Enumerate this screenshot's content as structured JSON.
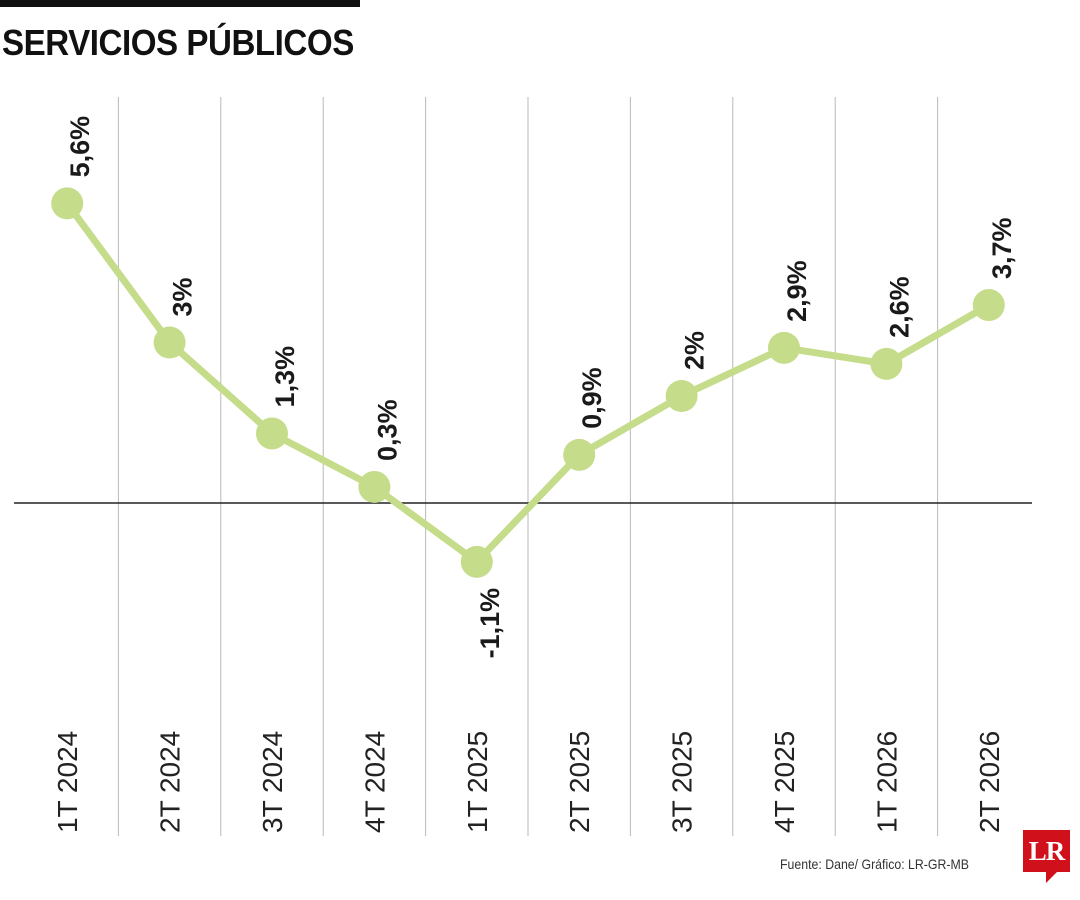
{
  "header": {
    "title": "SERVICIOS PÚBLICOS"
  },
  "colors": {
    "line": "#c5dc8b",
    "point": "#c5dc8b",
    "grid": "#b9b9b9",
    "zero_axis": "#222222",
    "logo": "#d0101a"
  },
  "chart_data": {
    "type": "line",
    "categories": [
      "1T 2024",
      "2T 2024",
      "3T 2024",
      "4T 2024",
      "1T 2025",
      "2T 2025",
      "3T 2025",
      "4T 2025",
      "1T 2026",
      "2T 2026"
    ],
    "series": [
      {
        "values": [
          5.6,
          3,
          1.3,
          0.3,
          -1.1,
          0.9,
          2,
          2.9,
          2.6,
          3.7
        ]
      }
    ],
    "data_labels": [
      "5,6%",
      "3%",
      "1,3%",
      "0,3%",
      "-1,1%",
      "0,9%",
      "2%",
      "2,9%",
      "2,6%",
      "3,7%"
    ],
    "title": "SERVICIOS PÚBLICOS",
    "xlabel": "",
    "ylabel": "",
    "ylim": [
      -3.7,
      7.6
    ],
    "grid": true,
    "legend": "none"
  },
  "footer": {
    "source": "Fuente: Dane/ Gráfico: LR-GR-MB",
    "logo_text": "LR"
  }
}
